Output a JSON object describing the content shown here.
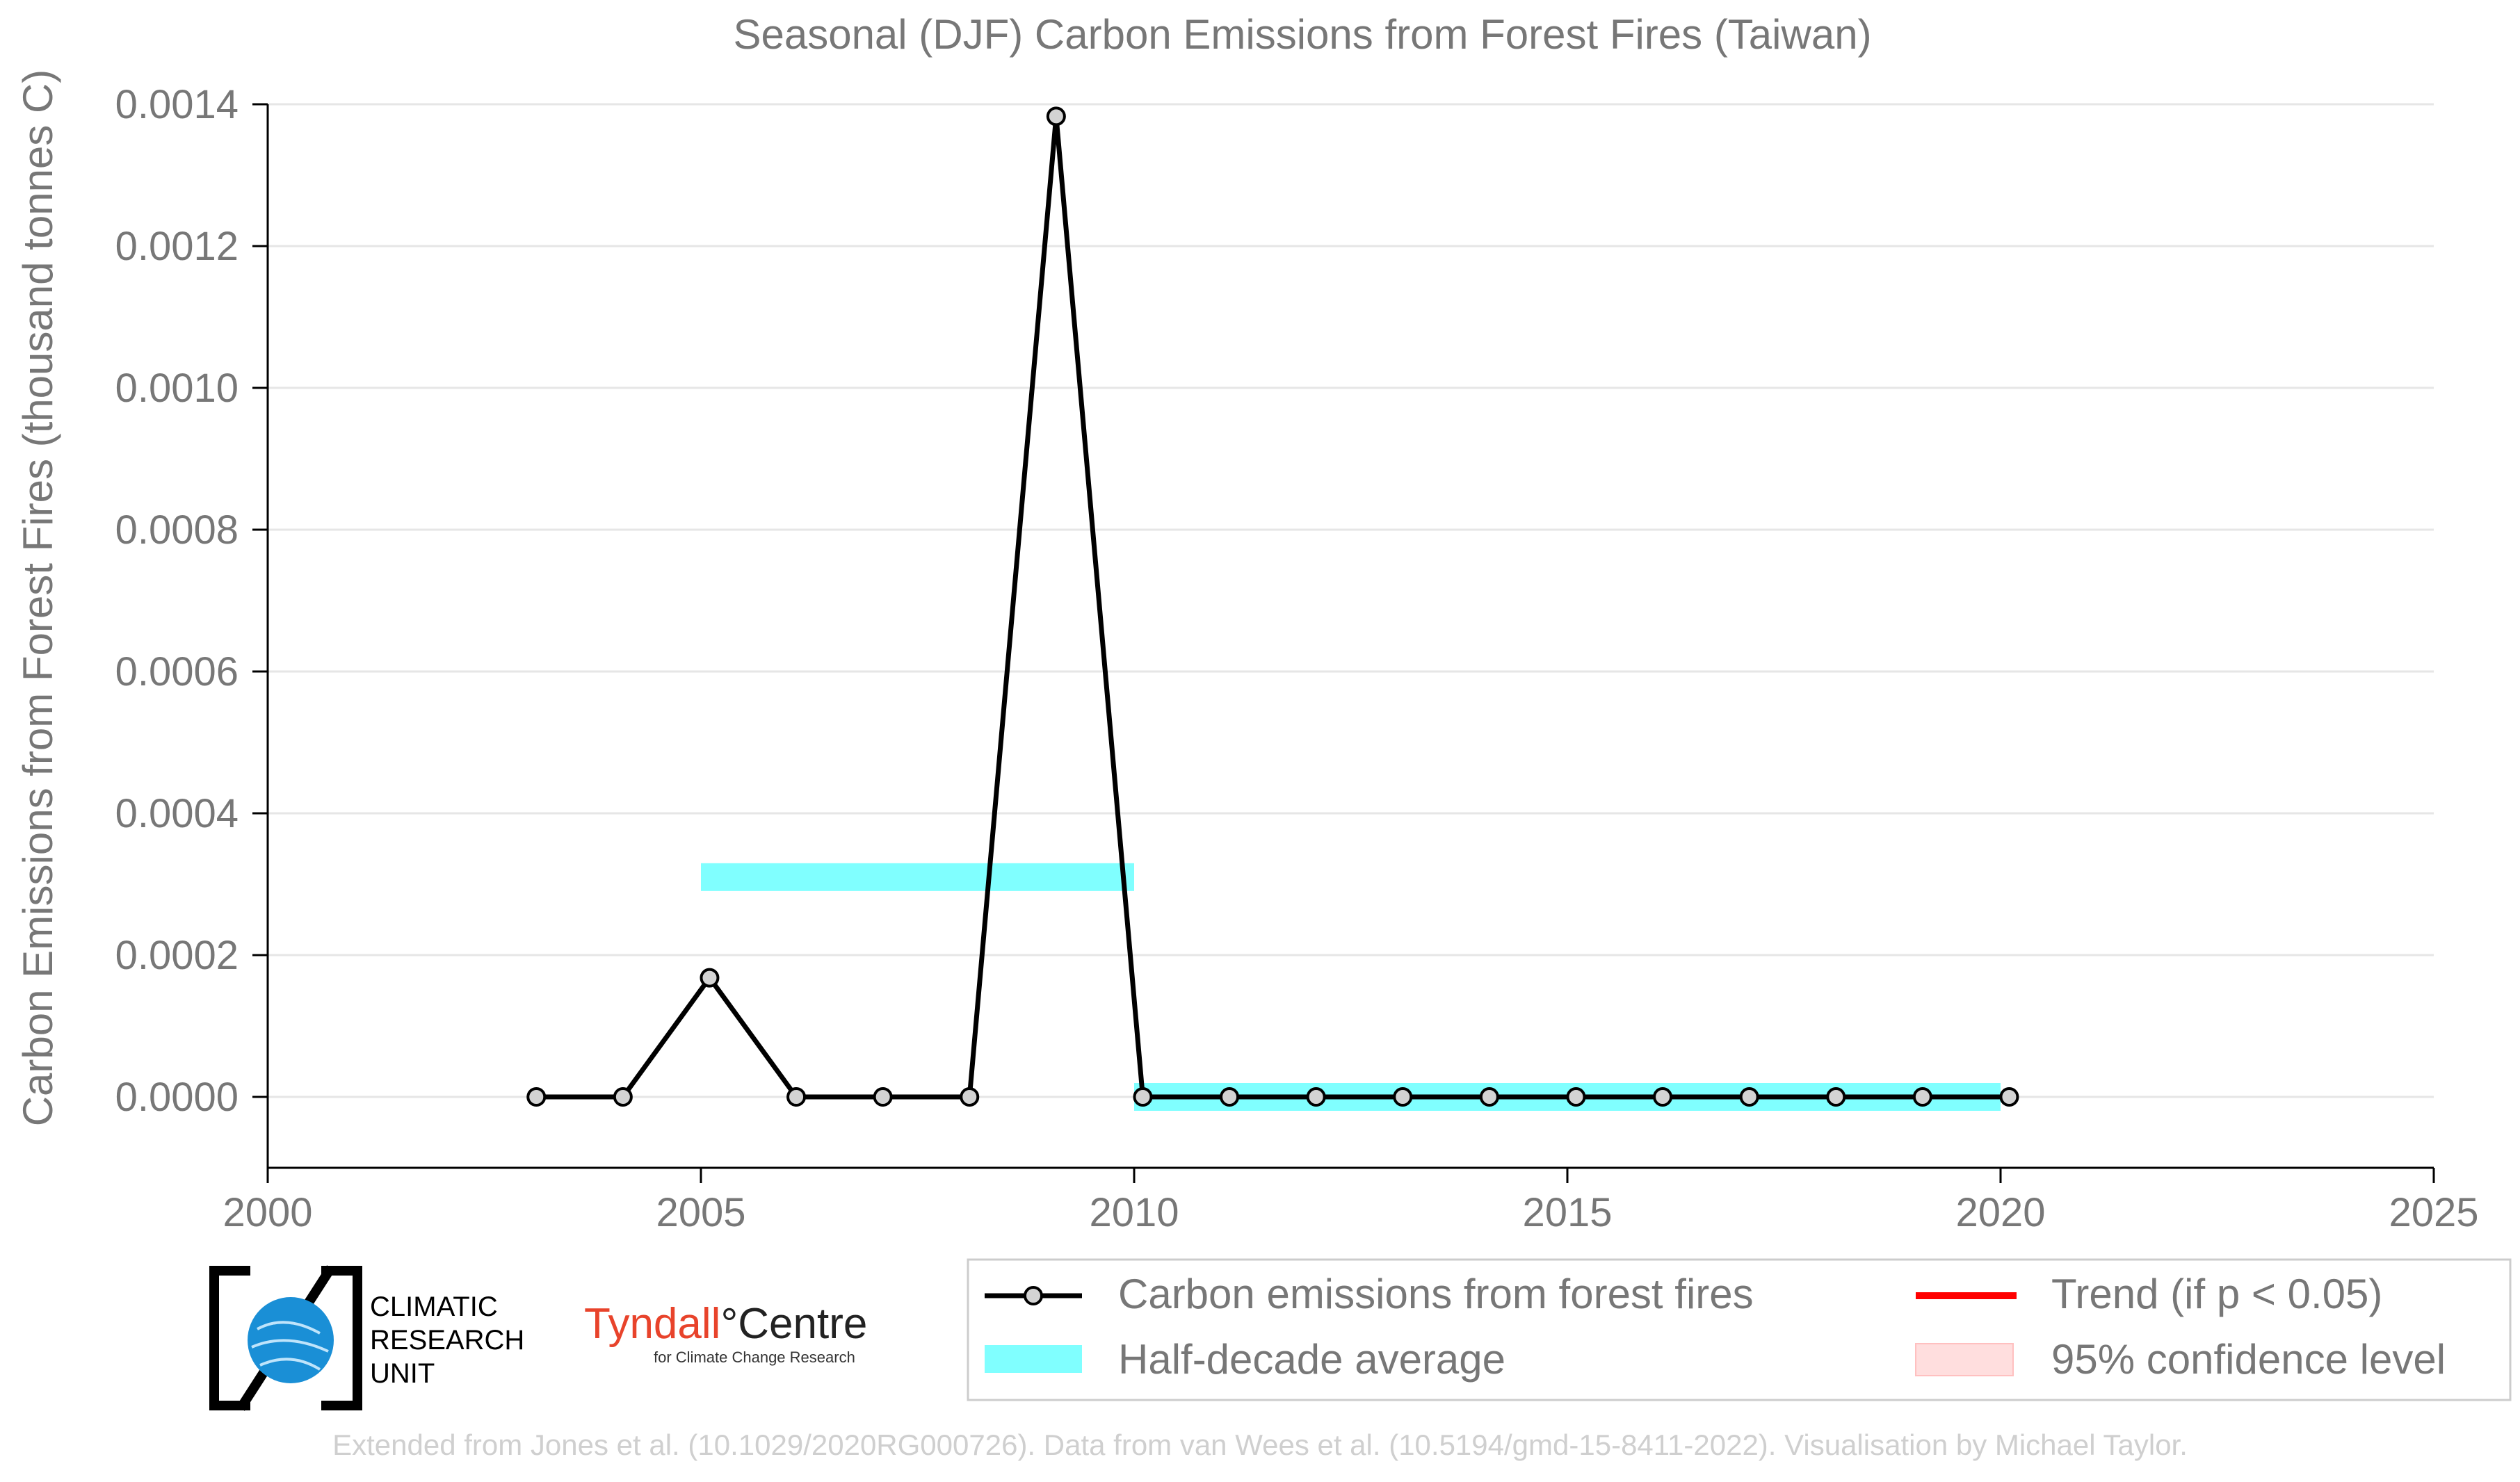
{
  "chart_data": {
    "type": "line",
    "title": "Seasonal (DJF) Carbon Emissions from Forest Fires (Taiwan)",
    "xlabel": "",
    "ylabel": "Carbon Emissions from Forest Fires (thousand tonnes C)",
    "xlim": [
      2000,
      2025
    ],
    "ylim": [
      -0.0001,
      0.0014
    ],
    "xticks": [
      2000,
      2005,
      2010,
      2015,
      2020,
      2025
    ],
    "xtick_labels": [
      "2000",
      "2005",
      "2010",
      "2015",
      "2020",
      "2025"
    ],
    "yticks": [
      0,
      0.0002,
      0.0004,
      0.0006,
      0.0008,
      0.001,
      0.0012,
      0.0014
    ],
    "ytick_labels": [
      "0.0000",
      "0.0002",
      "0.0004",
      "0.0006",
      "0.0008",
      "0.0010",
      "0.0012",
      "0.0014"
    ],
    "grid": "horizontal",
    "legend_position": "bottom-right",
    "series": [
      {
        "name": "Carbon emissions from forest fires",
        "kind": "line-markers",
        "color": "#000000",
        "marker_color": "#d3d3d3",
        "x": [
          2003.1,
          2004.1,
          2005.1,
          2006.1,
          2007.1,
          2008.1,
          2009.1,
          2010.1,
          2011.1,
          2012.1,
          2013.1,
          2014.1,
          2015.1,
          2016.1,
          2017.1,
          2018.1,
          2019.1,
          2020.1
        ],
        "y": [
          0,
          0,
          0.000168,
          0,
          0,
          0,
          0.001383,
          0,
          0,
          0,
          0,
          0,
          0,
          0,
          0,
          0,
          0,
          0
        ]
      },
      {
        "name": "Half-decade average",
        "kind": "band",
        "color": "#80ffff",
        "segments": [
          {
            "x_start": 2005,
            "x_end": 2010,
            "y": 0.00031
          },
          {
            "x_start": 2010,
            "x_end": 2020,
            "y": 0
          }
        ]
      },
      {
        "name": "Trend (if p < 0.05)",
        "kind": "legend-only",
        "color": "#ff0000"
      },
      {
        "name": "95% confidence level",
        "kind": "legend-only",
        "color": "#ffdede"
      }
    ]
  },
  "logos": {
    "cru_line1": "CLIMATIC",
    "cru_line2": "RESEARCH",
    "cru_line3": "UNIT",
    "tyndall_name": "Tyndall",
    "tyndall_degree": "°",
    "tyndall_centre": "Centre",
    "tyndall_sub": "for Climate Change Research",
    "cru_icon_color": "#1a8fd6"
  },
  "credit": "Extended from Jones et al. (10.1029/2020RG000726). Data from van Wees et al. (10.5194/gmd-15-8411-2022). Visualisation by Michael Taylor."
}
